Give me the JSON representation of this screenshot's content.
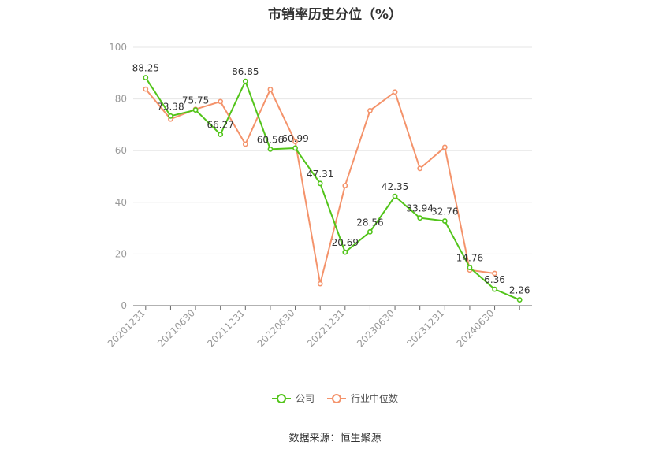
{
  "chart_data": {
    "type": "line",
    "title": "市销率历史分位（%）",
    "x": [
      "20201231",
      "20210331",
      "20210630",
      "20210930",
      "20211231",
      "20220331",
      "20220630",
      "20220930",
      "20221231",
      "20230331",
      "20230630",
      "20230930",
      "20231231",
      "20240331",
      "20240630",
      "20240930"
    ],
    "x_tick_labels": [
      "20201231",
      "20210630",
      "20211231",
      "20220630",
      "20221231",
      "20230630",
      "20231231",
      "20240630"
    ],
    "ylim": [
      0,
      100
    ],
    "y_ticks": [
      0,
      20,
      40,
      60,
      80,
      100
    ],
    "grid": true,
    "legend_position": "bottom",
    "series": [
      {
        "name": "公司",
        "color": "#52c41a",
        "values": [
          88.25,
          73.38,
          75.75,
          66.27,
          86.85,
          60.56,
          60.99,
          47.31,
          20.69,
          28.56,
          42.35,
          33.94,
          32.76,
          14.76,
          6.36,
          2.26
        ],
        "labels": [
          "88.25",
          "73.38",
          "75.75",
          "66.27",
          "86.85",
          "60.56",
          "60.99",
          "47.31",
          "20.69",
          "28.56",
          "42.35",
          "33.94",
          "32.76",
          "14.76",
          "6.36",
          "2.26"
        ]
      },
      {
        "name": "行业中位数",
        "color": "#f4936b",
        "values": [
          83.8,
          72.2,
          76.0,
          79.0,
          62.5,
          83.7,
          63.5,
          8.5,
          46.5,
          75.5,
          82.7,
          53.1,
          61.3,
          13.8,
          12.5,
          null
        ]
      }
    ]
  },
  "source": "数据来源：恒生聚源"
}
